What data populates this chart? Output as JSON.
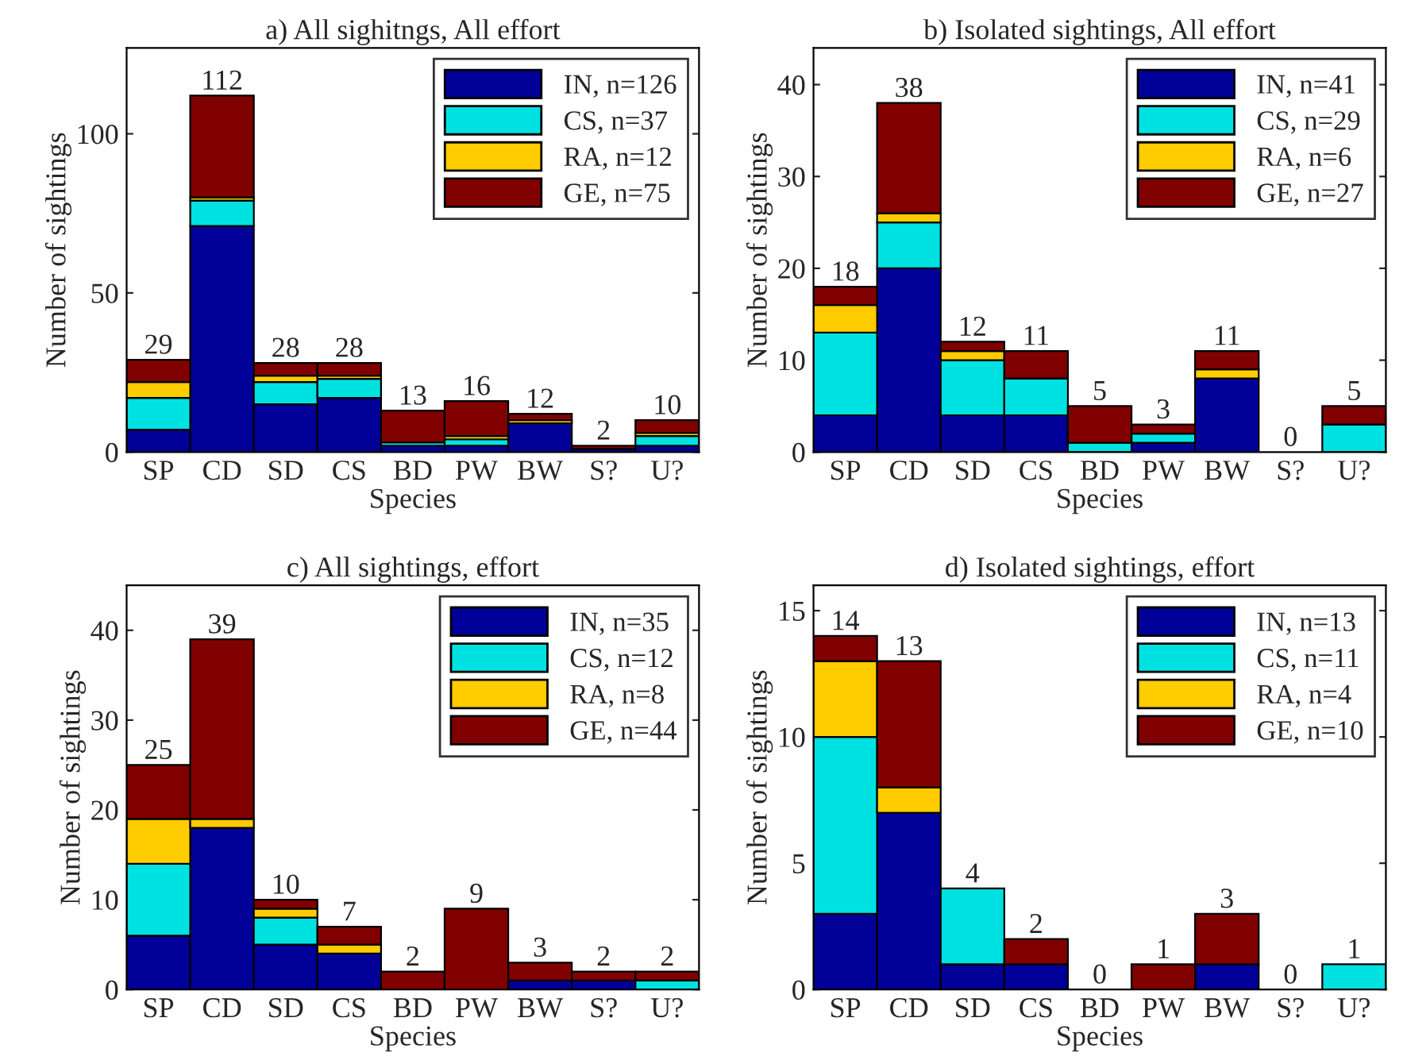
{
  "chart_data": [
    {
      "type": "bar",
      "title": "a) All sighitngs, All effort",
      "xlabel": "Species",
      "ylabel": "Number of sightings",
      "categories": [
        "SP",
        "CD",
        "SD",
        "CS",
        "BD",
        "PW",
        "BW",
        "S?",
        "U?"
      ],
      "stacked": true,
      "ylim": [
        0,
        127
      ],
      "yticks": [
        0,
        50,
        100
      ],
      "legend": "top right",
      "grid": false,
      "series": [
        {
          "name": "IN, n=126",
          "color": "#000099",
          "values": [
            7,
            71,
            15,
            17,
            2,
            2,
            9,
            1,
            2
          ]
        },
        {
          "name": "CS, n=37",
          "color": "#00e1e1",
          "values": [
            10,
            8,
            7,
            6,
            1,
            2,
            0,
            0,
            3
          ]
        },
        {
          "name": "RA, n=12",
          "color": "#ffcc00",
          "values": [
            5,
            1,
            2,
            1,
            0,
            1,
            1,
            0,
            1
          ]
        },
        {
          "name": "GE, n=75",
          "color": "#800000",
          "values": [
            7,
            32,
            4,
            4,
            10,
            11,
            2,
            1,
            4
          ]
        }
      ],
      "totals": [
        "29",
        "112",
        "28",
        "28",
        "13",
        "16",
        "12",
        "2",
        "10"
      ]
    },
    {
      "type": "bar",
      "title": "b) Isolated sightings, All effort",
      "xlabel": "Species",
      "ylabel": "Number of sightings",
      "categories": [
        "SP",
        "CD",
        "SD",
        "CS",
        "BD",
        "PW",
        "BW",
        "S?",
        "U?"
      ],
      "stacked": true,
      "ylim": [
        0,
        44
      ],
      "yticks": [
        0,
        10,
        20,
        30,
        40
      ],
      "legend": "top right",
      "grid": false,
      "series": [
        {
          "name": "IN, n=41",
          "color": "#000099",
          "values": [
            4,
            20,
            4,
            4,
            0,
            1,
            8,
            0,
            0
          ]
        },
        {
          "name": "CS, n=29",
          "color": "#00e1e1",
          "values": [
            9,
            5,
            6,
            4,
            1,
            1,
            0,
            0,
            3
          ]
        },
        {
          "name": "RA, n=6",
          "color": "#ffcc00",
          "values": [
            3,
            1,
            1,
            0,
            0,
            0,
            1,
            0,
            0
          ]
        },
        {
          "name": "GE, n=27",
          "color": "#800000",
          "values": [
            2,
            12,
            1,
            3,
            4,
            1,
            2,
            0,
            2
          ]
        }
      ],
      "totals": [
        "18",
        "38",
        "12",
        "11",
        "5",
        "3",
        "11",
        "0",
        "5"
      ]
    },
    {
      "type": "bar",
      "title": "c) All sightings, effort",
      "xlabel": "Species",
      "ylabel": "Number of sightings",
      "categories": [
        "SP",
        "CD",
        "SD",
        "CS",
        "BD",
        "PW",
        "BW",
        "S?",
        "U?"
      ],
      "stacked": true,
      "ylim": [
        0,
        45
      ],
      "yticks": [
        0,
        10,
        20,
        30,
        40
      ],
      "legend": "top right",
      "grid": false,
      "series": [
        {
          "name": "IN, n=35",
          "color": "#000099",
          "values": [
            6,
            18,
            5,
            4,
            0,
            0,
            1,
            1,
            0
          ]
        },
        {
          "name": "CS, n=12",
          "color": "#00e1e1",
          "values": [
            8,
            0,
            3,
            0,
            0,
            0,
            0,
            0,
            1
          ]
        },
        {
          "name": "RA, n=8",
          "color": "#ffcc00",
          "values": [
            5,
            1,
            1,
            1,
            0,
            0,
            0,
            0,
            0
          ]
        },
        {
          "name": "GE, n=44",
          "color": "#800000",
          "values": [
            6,
            20,
            1,
            2,
            2,
            9,
            2,
            1,
            1
          ]
        }
      ],
      "totals": [
        "25",
        "39",
        "10",
        "7",
        "2",
        "9",
        "3",
        "2",
        "2"
      ]
    },
    {
      "type": "bar",
      "title": "d) Isolated sightings, effort",
      "xlabel": "Species",
      "ylabel": "Number of sightings",
      "categories": [
        "SP",
        "CD",
        "SD",
        "CS",
        "BD",
        "PW",
        "BW",
        "S?",
        "U?"
      ],
      "stacked": true,
      "ylim": [
        0,
        16
      ],
      "yticks": [
        0,
        5,
        10,
        15
      ],
      "legend": "top right",
      "grid": false,
      "series": [
        {
          "name": "IN, n=13",
          "color": "#000099",
          "values": [
            3,
            7,
            1,
            1,
            0,
            0,
            1,
            0,
            0
          ]
        },
        {
          "name": "CS, n=11",
          "color": "#00e1e1",
          "values": [
            7,
            0,
            3,
            0,
            0,
            0,
            0,
            0,
            1
          ]
        },
        {
          "name": "RA, n=4",
          "color": "#ffcc00",
          "values": [
            3,
            1,
            0,
            0,
            0,
            0,
            0,
            0,
            0
          ]
        },
        {
          "name": "GE, n=10",
          "color": "#800000",
          "values": [
            1,
            5,
            0,
            1,
            0,
            1,
            2,
            0,
            0
          ]
        }
      ],
      "totals": [
        "14",
        "13",
        "4",
        "2",
        "0",
        "1",
        "3",
        "0",
        "1"
      ]
    }
  ]
}
